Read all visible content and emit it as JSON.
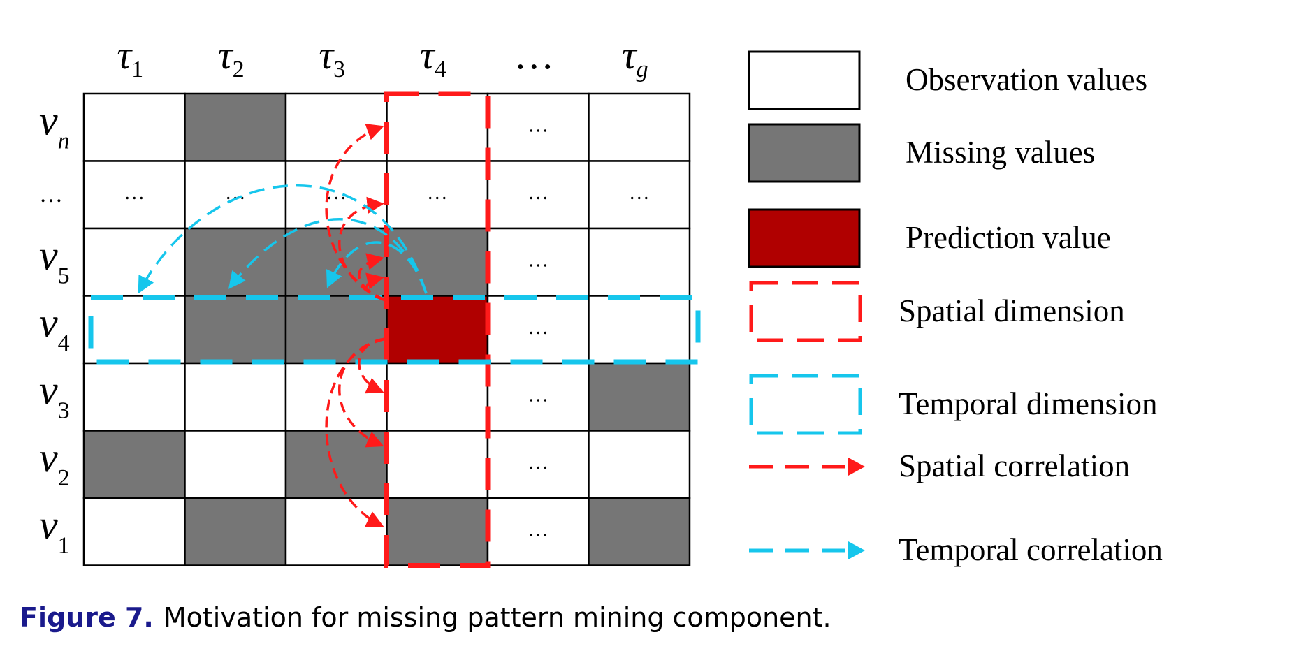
{
  "grid": {
    "columns": [
      {
        "base": "τ",
        "sub": "1"
      },
      {
        "base": "τ",
        "sub": "2"
      },
      {
        "base": "τ",
        "sub": "3"
      },
      {
        "base": "τ",
        "sub": "4"
      },
      {
        "base": "…",
        "sub": ""
      },
      {
        "base": "τ",
        "sub": "g"
      }
    ],
    "rows": [
      {
        "base": "v",
        "sub": "n"
      },
      {
        "base": "…",
        "sub": ""
      },
      {
        "base": "v",
        "sub": "5"
      },
      {
        "base": "v",
        "sub": "4"
      },
      {
        "base": "v",
        "sub": "3"
      },
      {
        "base": "v",
        "sub": "2"
      },
      {
        "base": "v",
        "sub": "1"
      }
    ],
    "cells": [
      [
        "obs",
        "miss",
        "obs",
        "obs",
        "dots",
        "obs"
      ],
      [
        "dots",
        "dots",
        "dots",
        "dots",
        "dots",
        "dots"
      ],
      [
        "obs",
        "miss",
        "miss",
        "miss",
        "dots",
        "obs"
      ],
      [
        "obs",
        "miss",
        "miss",
        "pred",
        "dots",
        "obs"
      ],
      [
        "obs",
        "obs",
        "obs",
        "obs",
        "dots",
        "miss"
      ],
      [
        "miss",
        "obs",
        "miss",
        "obs",
        "dots",
        "obs"
      ],
      [
        "obs",
        "miss",
        "obs",
        "miss",
        "dots",
        "miss"
      ]
    ],
    "ellipsis": "…"
  },
  "legend": [
    {
      "type": "obs",
      "label": "Observation values"
    },
    {
      "type": "miss",
      "label": "Missing values"
    },
    {
      "type": "pred",
      "label": "Prediction value"
    },
    {
      "type": "spatial-dim",
      "label": "Spatial dimension"
    },
    {
      "type": "temporal-dim",
      "label": "Temporal dimension"
    },
    {
      "type": "spatial-corr",
      "label": "Spatial correlation"
    },
    {
      "type": "temporal-corr",
      "label": "Temporal correlation"
    }
  ],
  "colors": {
    "observation": "#ffffff",
    "missing": "#767676",
    "prediction": "#b00000",
    "spatial": "#ff1a1a",
    "temporal": "#16c6ec",
    "grid_line": "#000000"
  },
  "caption": {
    "label": "Figure 7.",
    "text": "Motivation for missing pattern mining component."
  }
}
